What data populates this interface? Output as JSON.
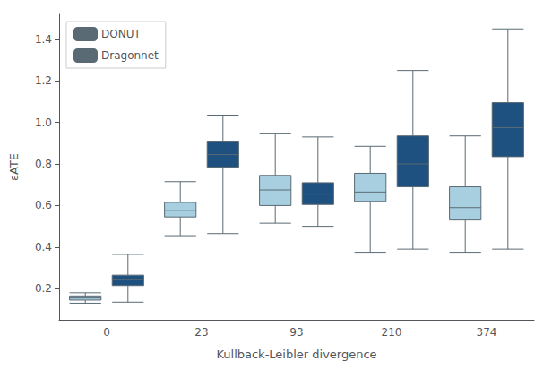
{
  "chart_data": {
    "type": "boxplot",
    "xlabel": "Kullback-Leibler divergence",
    "ylabel": "εATE",
    "categories": [
      0,
      23,
      93,
      210,
      374
    ],
    "series": [
      {
        "name": "DONUT",
        "color": "#a8cfe0",
        "values": [
          {
            "whislo": 0.13,
            "q1": 0.145,
            "med": 0.155,
            "q3": 0.165,
            "whishi": 0.18
          },
          {
            "whislo": 0.455,
            "q1": 0.545,
            "med": 0.575,
            "q3": 0.615,
            "whishi": 0.715
          },
          {
            "whislo": 0.515,
            "q1": 0.6,
            "med": 0.675,
            "q3": 0.745,
            "whishi": 0.945
          },
          {
            "whislo": 0.375,
            "q1": 0.62,
            "med": 0.665,
            "q3": 0.755,
            "whishi": 0.885
          },
          {
            "whislo": 0.375,
            "q1": 0.53,
            "med": 0.59,
            "q3": 0.69,
            "whishi": 0.935
          }
        ]
      },
      {
        "name": "Dragonnet",
        "color": "#1e5080",
        "values": [
          {
            "whislo": 0.135,
            "q1": 0.215,
            "med": 0.245,
            "q3": 0.265,
            "whishi": 0.365
          },
          {
            "whislo": 0.465,
            "q1": 0.785,
            "med": 0.845,
            "q3": 0.91,
            "whishi": 1.035
          },
          {
            "whislo": 0.5,
            "q1": 0.605,
            "med": 0.655,
            "q3": 0.71,
            "whishi": 0.93
          },
          {
            "whislo": 0.39,
            "q1": 0.69,
            "med": 0.8,
            "q3": 0.935,
            "whishi": 1.25
          },
          {
            "whislo": 0.39,
            "q1": 0.835,
            "med": 0.975,
            "q3": 1.095,
            "whishi": 1.45
          }
        ]
      }
    ],
    "ylim": [
      0.05,
      1.52
    ],
    "yticks": [
      0.2,
      0.4,
      0.6,
      0.8,
      {
        "value": 1.0,
        "label": "1.0"
      },
      1.2,
      1.4
    ],
    "grid": false,
    "legend": "upper left"
  }
}
